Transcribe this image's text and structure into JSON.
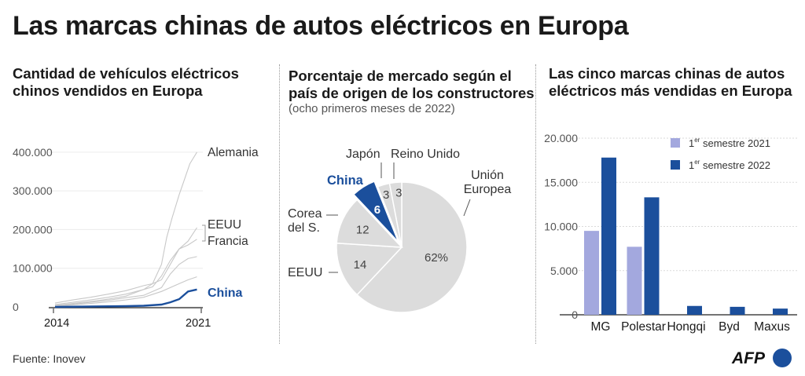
{
  "title": "Las marcas chinas de autos eléctricos en Europa",
  "source": "Fuente: Inovev",
  "logo": "AFP",
  "colors": {
    "china_blue": "#1b4f9c",
    "light_blue": "#a3a8de",
    "grey": "#dcdcdc",
    "line_grey": "#c8c8c8"
  },
  "panels": {
    "left": {
      "title_1": "Cantidad de vehículos eléctricos",
      "title_2": "chinos vendidos en Europa"
    },
    "middle": {
      "title_1": "Porcentaje de mercado según el",
      "title_2": "país de origen de los constructores",
      "subtitle": "(ocho primeros meses de 2022)"
    },
    "right": {
      "title_1": "Las cinco marcas chinas de autos",
      "title_2": "eléctricos más vendidas en Europa"
    }
  },
  "chart_data": [
    {
      "type": "line",
      "ytick_labels": [
        "0",
        "100.000",
        "200.000",
        "300.000",
        "400.000"
      ],
      "yticks": [
        0,
        100000,
        200000,
        300000,
        400000
      ],
      "ylim": [
        0,
        420000
      ],
      "xtick_labels": [
        "2014",
        "2021"
      ],
      "xlim": [
        2014,
        2022.2
      ],
      "series": [
        {
          "name": "Alemania",
          "highlight": false,
          "x": [
            2014,
            2015,
            2016,
            2017,
            2018,
            2019,
            2019.5,
            2020,
            2020.3,
            2020.6,
            2021,
            2021.3,
            2021.6,
            2022
          ],
          "y": [
            4000,
            9000,
            14000,
            20000,
            28000,
            45000,
            60000,
            110000,
            180000,
            230000,
            290000,
            330000,
            370000,
            400000
          ]
        },
        {
          "name": "EEUU",
          "highlight": false,
          "x": [
            2014,
            2015,
            2016,
            2017,
            2018,
            2019,
            2019.5,
            2020,
            2020.5,
            2021,
            2021.5,
            2022
          ],
          "y": [
            10000,
            18000,
            25000,
            33000,
            42000,
            55000,
            60000,
            70000,
            110000,
            150000,
            170000,
            205000
          ]
        },
        {
          "name": "Francia",
          "highlight": false,
          "x": [
            2014,
            2015,
            2016,
            2017,
            2018,
            2019,
            2019.5,
            2020,
            2020.5,
            2021,
            2021.5,
            2022
          ],
          "y": [
            6000,
            12000,
            18000,
            25000,
            33000,
            45000,
            52000,
            80000,
            120000,
            150000,
            160000,
            175000
          ]
        },
        {
          "name": "",
          "highlight": false,
          "x": [
            2014,
            2015,
            2016,
            2017,
            2018,
            2019,
            2020,
            2020.5,
            2021,
            2021.5,
            2022
          ],
          "y": [
            3000,
            7000,
            12000,
            17000,
            24000,
            30000,
            50000,
            85000,
            110000,
            125000,
            130000
          ]
        },
        {
          "name": "",
          "highlight": false,
          "x": [
            2014,
            2015,
            2016,
            2017,
            2018,
            2019,
            2020,
            2021,
            2021.5,
            2022
          ],
          "y": [
            2000,
            5000,
            9000,
            13000,
            18000,
            25000,
            40000,
            60000,
            70000,
            78000
          ]
        },
        {
          "name": "China",
          "highlight": true,
          "x": [
            2014,
            2016,
            2018,
            2019,
            2020,
            2020.5,
            2021,
            2021.5,
            2022
          ],
          "y": [
            0,
            1000,
            2000,
            3000,
            6000,
            12000,
            20000,
            40000,
            45000
          ]
        }
      ]
    },
    {
      "type": "pie",
      "slices": [
        {
          "label": "Unión\nEuropea",
          "value": 62,
          "value_label": "62%",
          "color": "#dcdcdc"
        },
        {
          "label": "EEUU",
          "value": 14,
          "value_label": "14",
          "color": "#dcdcdc"
        },
        {
          "label": "Corea\ndel S.",
          "value": 12,
          "value_label": "12",
          "color": "#dcdcdc"
        },
        {
          "label": "China",
          "value": 6,
          "value_label": "6",
          "color": "#1b4f9c",
          "highlight": true
        },
        {
          "label": "Japón",
          "value": 3,
          "value_label": "3",
          "color": "#dcdcdc"
        },
        {
          "label": "Reino Unido",
          "value": 3,
          "value_label": "3",
          "color": "#dcdcdc"
        }
      ]
    },
    {
      "type": "bar",
      "categories": [
        "MG",
        "Polestar",
        "Hongqi",
        "Byd",
        "Maxus"
      ],
      "ytick_labels": [
        "0",
        "5.000",
        "10.000",
        "15.000",
        "20.000"
      ],
      "yticks": [
        0,
        5000,
        10000,
        15000,
        20000
      ],
      "ylim": [
        0,
        20000
      ],
      "legend_position": "top-right",
      "series": [
        {
          "name": "1er semestre 2021",
          "name_base": "1",
          "name_sup": "er",
          "name_rest": " semestre 2021",
          "color": "#a3a8de",
          "values": [
            9500,
            7700,
            0,
            0,
            0
          ]
        },
        {
          "name": "1er semestre 2022",
          "name_base": "1",
          "name_sup": "er",
          "name_rest": " semestre 2022",
          "color": "#1b4f9c",
          "values": [
            17800,
            13300,
            1000,
            900,
            700
          ]
        }
      ]
    }
  ]
}
